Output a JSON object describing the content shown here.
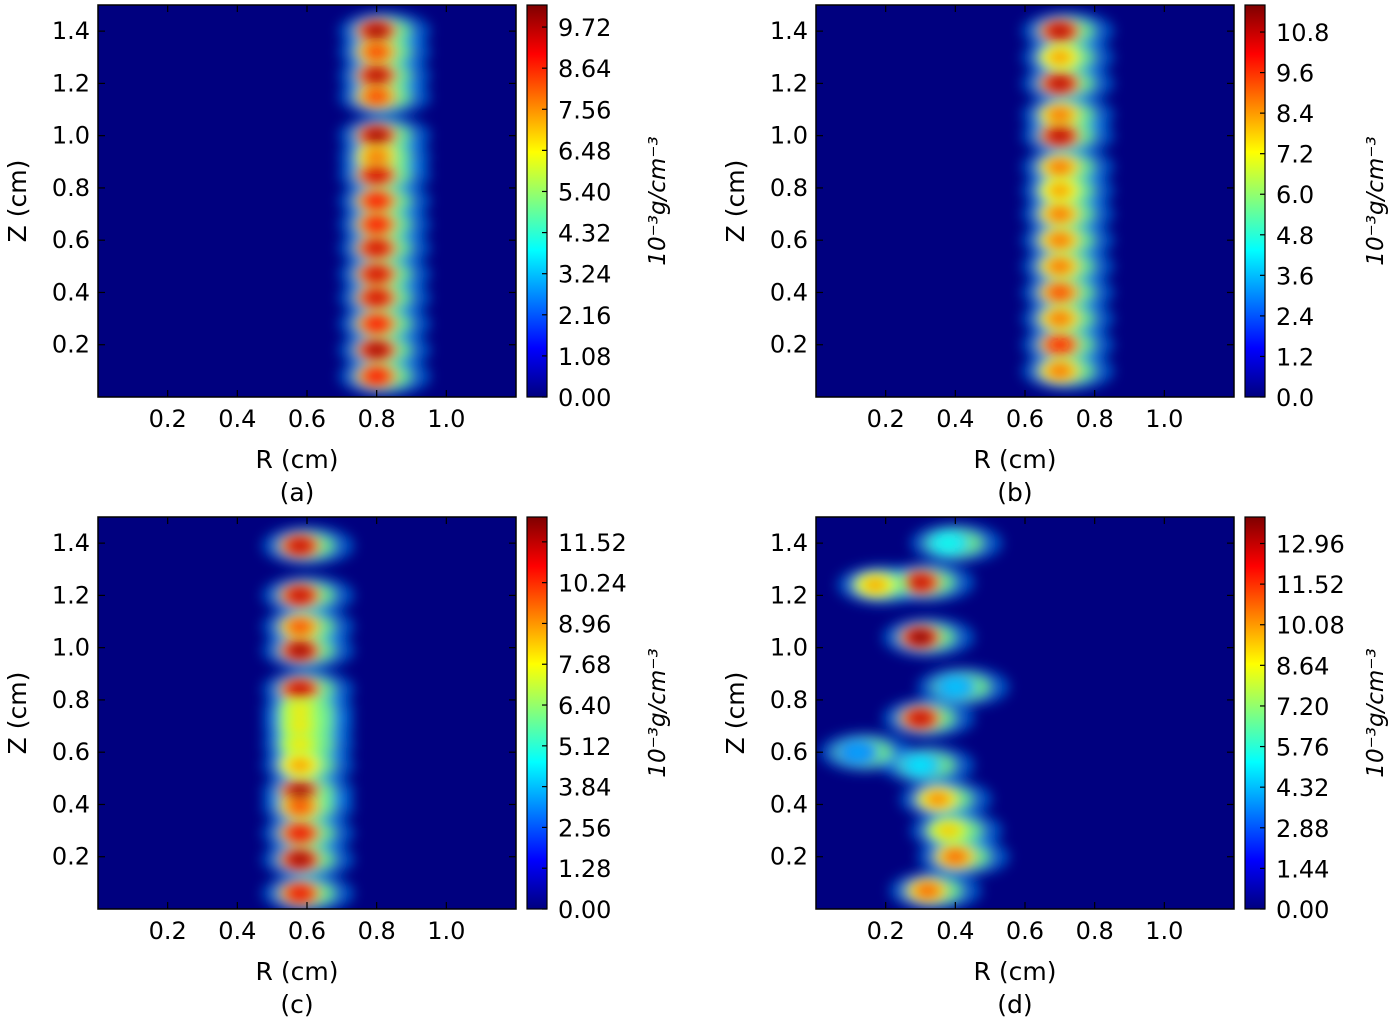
{
  "colors": {
    "jet": [
      "#00007f",
      "#0000ff",
      "#0080ff",
      "#00ffff",
      "#80ff80",
      "#ffff00",
      "#ff8000",
      "#ff0000",
      "#7f0000"
    ],
    "background": "#00007f",
    "axis": "#000000"
  },
  "chart_data": [
    {
      "type": "heatmap",
      "panel_label": "(a)",
      "xlabel": "R (cm)",
      "ylabel": "Z (cm)",
      "xlim": [
        0.0,
        1.2
      ],
      "ylim": [
        0.0,
        1.5
      ],
      "xticks": [
        "0.2",
        "0.4",
        "0.6",
        "0.8",
        "1.0"
      ],
      "yticks": [
        "0.2",
        "0.4",
        "0.6",
        "0.8",
        "1.0",
        "1.2",
        "1.4"
      ],
      "colorbar": {
        "label": "10⁻³g/cm⁻³",
        "range": [
          0.0,
          10.3
        ],
        "ticks": [
          "0.00",
          "1.08",
          "2.16",
          "3.24",
          "4.32",
          "5.40",
          "6.48",
          "7.56",
          "8.64",
          "9.72"
        ]
      },
      "blobs": [
        {
          "r": 0.8,
          "z": 1.4,
          "v": 10.0
        },
        {
          "r": 0.8,
          "z": 1.32,
          "v": 8.5
        },
        {
          "r": 0.8,
          "z": 1.23,
          "v": 9.8
        },
        {
          "r": 0.8,
          "z": 1.15,
          "v": 8.5
        },
        {
          "r": 0.8,
          "z": 1.0,
          "v": 10.0
        },
        {
          "r": 0.8,
          "z": 0.92,
          "v": 8.0
        },
        {
          "r": 0.8,
          "z": 0.85,
          "v": 9.5
        },
        {
          "r": 0.8,
          "z": 0.75,
          "v": 9.0
        },
        {
          "r": 0.8,
          "z": 0.66,
          "v": 9.0
        },
        {
          "r": 0.8,
          "z": 0.57,
          "v": 9.5
        },
        {
          "r": 0.8,
          "z": 0.47,
          "v": 9.5
        },
        {
          "r": 0.8,
          "z": 0.38,
          "v": 9.5
        },
        {
          "r": 0.8,
          "z": 0.28,
          "v": 9.0
        },
        {
          "r": 0.8,
          "z": 0.18,
          "v": 10.0
        },
        {
          "r": 0.8,
          "z": 0.08,
          "v": 9.0
        }
      ]
    },
    {
      "type": "heatmap",
      "panel_label": "(b)",
      "xlabel": "R (cm)",
      "ylabel": "Z (cm)",
      "xlim": [
        0.0,
        1.2
      ],
      "ylim": [
        0.0,
        1.5
      ],
      "xticks": [
        "0.2",
        "0.4",
        "0.6",
        "0.8",
        "1.0"
      ],
      "yticks": [
        "0.2",
        "0.4",
        "0.6",
        "0.8",
        "1.0",
        "1.2",
        "1.4"
      ],
      "colorbar": {
        "label": "10⁻³g/cm⁻³",
        "range": [
          0.0,
          11.6
        ],
        "ticks": [
          "0.0",
          "1.2",
          "2.4",
          "3.6",
          "4.8",
          "6.0",
          "7.2",
          "8.4",
          "9.6",
          "10.8"
        ]
      },
      "blobs": [
        {
          "r": 0.7,
          "z": 1.4,
          "v": 11.0
        },
        {
          "r": 0.7,
          "z": 1.3,
          "v": 8.5
        },
        {
          "r": 0.7,
          "z": 1.2,
          "v": 11.0
        },
        {
          "r": 0.7,
          "z": 1.08,
          "v": 9.0
        },
        {
          "r": 0.7,
          "z": 1.0,
          "v": 11.0
        },
        {
          "r": 0.7,
          "z": 0.88,
          "v": 9.0
        },
        {
          "r": 0.7,
          "z": 0.79,
          "v": 8.5
        },
        {
          "r": 0.7,
          "z": 0.7,
          "v": 9.0
        },
        {
          "r": 0.7,
          "z": 0.6,
          "v": 9.0
        },
        {
          "r": 0.7,
          "z": 0.5,
          "v": 9.0
        },
        {
          "r": 0.7,
          "z": 0.4,
          "v": 9.5
        },
        {
          "r": 0.7,
          "z": 0.3,
          "v": 9.0
        },
        {
          "r": 0.7,
          "z": 0.2,
          "v": 10.0
        },
        {
          "r": 0.7,
          "z": 0.1,
          "v": 9.0
        }
      ]
    },
    {
      "type": "heatmap",
      "panel_label": "(c)",
      "xlabel": "R (cm)",
      "ylabel": "Z (cm)",
      "xlim": [
        0.0,
        1.2
      ],
      "ylim": [
        0.0,
        1.5
      ],
      "xticks": [
        "0.2",
        "0.4",
        "0.6",
        "0.8",
        "1.0"
      ],
      "yticks": [
        "0.2",
        "0.4",
        "0.6",
        "0.8",
        "1.0",
        "1.2",
        "1.4"
      ],
      "colorbar": {
        "label": "10⁻³g/cm⁻³",
        "range": [
          0.0,
          12.3
        ],
        "ticks": [
          "0.00",
          "1.28",
          "2.56",
          "3.84",
          "5.12",
          "6.40",
          "7.68",
          "8.96",
          "10.24",
          "11.52"
        ]
      },
      "blobs": [
        {
          "r": 0.58,
          "z": 1.39,
          "v": 11.5
        },
        {
          "r": 0.58,
          "z": 1.2,
          "v": 11.5
        },
        {
          "r": 0.58,
          "z": 1.08,
          "v": 10.0
        },
        {
          "r": 0.58,
          "z": 0.99,
          "v": 12.0
        },
        {
          "r": 0.58,
          "z": 0.84,
          "v": 11.5
        },
        {
          "r": 0.58,
          "z": 0.76,
          "v": 8.0
        },
        {
          "r": 0.58,
          "z": 0.7,
          "v": 8.0
        },
        {
          "r": 0.58,
          "z": 0.63,
          "v": 8.0
        },
        {
          "r": 0.58,
          "z": 0.55,
          "v": 9.0
        },
        {
          "r": 0.58,
          "z": 0.45,
          "v": 12.0
        },
        {
          "r": 0.58,
          "z": 0.39,
          "v": 10.0
        },
        {
          "r": 0.58,
          "z": 0.29,
          "v": 11.0
        },
        {
          "r": 0.58,
          "z": 0.19,
          "v": 12.0
        },
        {
          "r": 0.58,
          "z": 0.06,
          "v": 11.0
        }
      ]
    },
    {
      "type": "heatmap",
      "panel_label": "(d)",
      "xlabel": "R (cm)",
      "ylabel": "Z (cm)",
      "xlim": [
        0.0,
        1.2
      ],
      "ylim": [
        0.0,
        1.5
      ],
      "xticks": [
        "0.2",
        "0.4",
        "0.6",
        "0.8",
        "1.0"
      ],
      "yticks": [
        "0.2",
        "0.4",
        "0.6",
        "0.8",
        "1.0",
        "1.2",
        "1.4"
      ],
      "colorbar": {
        "label": "10⁻³g/cm⁻³",
        "range": [
          0.0,
          13.9
        ],
        "ticks": [
          "0.00",
          "1.44",
          "2.88",
          "4.32",
          "5.76",
          "7.20",
          "8.64",
          "10.08",
          "11.52",
          "12.96"
        ]
      },
      "blobs": [
        {
          "r": 0.38,
          "z": 1.4,
          "v": 5.5
        },
        {
          "r": 0.3,
          "z": 1.25,
          "v": 13.0
        },
        {
          "r": 0.17,
          "z": 1.24,
          "v": 10.0
        },
        {
          "r": 0.3,
          "z": 1.04,
          "v": 14.0
        },
        {
          "r": 0.4,
          "z": 0.85,
          "v": 4.5
        },
        {
          "r": 0.3,
          "z": 0.73,
          "v": 13.0
        },
        {
          "r": 0.12,
          "z": 0.6,
          "v": 4.0
        },
        {
          "r": 0.3,
          "z": 0.55,
          "v": 5.0
        },
        {
          "r": 0.35,
          "z": 0.42,
          "v": 10.5
        },
        {
          "r": 0.38,
          "z": 0.3,
          "v": 9.5
        },
        {
          "r": 0.4,
          "z": 0.2,
          "v": 11.0
        },
        {
          "r": 0.32,
          "z": 0.07,
          "v": 11.0
        }
      ]
    }
  ]
}
